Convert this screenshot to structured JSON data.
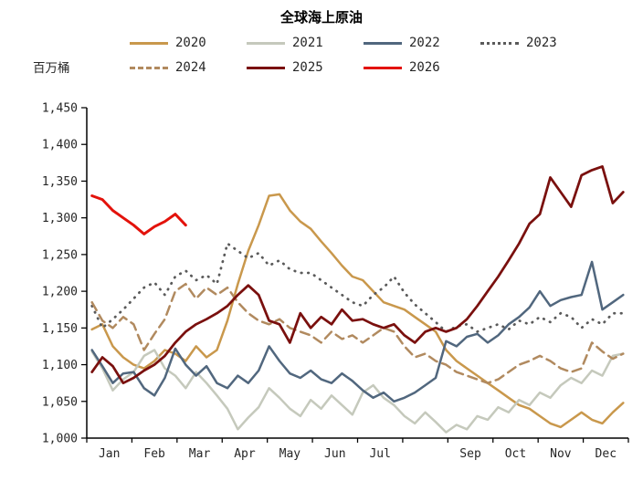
{
  "chart_data": {
    "type": "line",
    "title": "全球海上原油",
    "unit_label": "百万桶",
    "ylim": [
      1000,
      1450
    ],
    "ytick_step": 50,
    "ytick_labels": [
      "1,000",
      "1,050",
      "1,100",
      "1,150",
      "1,200",
      "1,250",
      "1,300",
      "1,350",
      "1,400",
      "1,450"
    ],
    "x_tick_labels": [
      "Jan",
      "Feb",
      "Mar",
      "Apr",
      "May",
      "Jun",
      "Jul",
      "",
      "Sep",
      "Oct",
      "Nov",
      "Dec"
    ],
    "weeks_per_year": 52,
    "grid": false,
    "legend_position": "top",
    "series": [
      {
        "name": "2020",
        "color": "#C9984C",
        "style": "solid",
        "width": 2.5,
        "values": [
          1148,
          1155,
          1125,
          1110,
          1100,
          1095,
          1105,
          1120,
          1115,
          1105,
          1125,
          1110,
          1120,
          1160,
          1210,
          1255,
          1290,
          1330,
          1332,
          1310,
          1295,
          1285,
          1268,
          1252,
          1235,
          1220,
          1215,
          1200,
          1185,
          1180,
          1175,
          1165,
          1155,
          1145,
          1120,
          1105,
          1095,
          1085,
          1075,
          1065,
          1055,
          1045,
          1040,
          1030,
          1020,
          1015,
          1025,
          1035,
          1025,
          1020,
          1035,
          1048
        ]
      },
      {
        "name": "2021",
        "color": "#C5C9BC",
        "style": "solid",
        "width": 2.5,
        "values": [
          1118,
          1095,
          1065,
          1080,
          1090,
          1112,
          1120,
          1095,
          1085,
          1068,
          1090,
          1075,
          1058,
          1040,
          1012,
          1028,
          1042,
          1068,
          1055,
          1040,
          1030,
          1052,
          1040,
          1058,
          1045,
          1032,
          1062,
          1072,
          1055,
          1045,
          1030,
          1020,
          1035,
          1022,
          1008,
          1018,
          1012,
          1030,
          1025,
          1042,
          1035,
          1052,
          1045,
          1062,
          1055,
          1072,
          1082,
          1075,
          1092,
          1085,
          1112,
          1115
        ]
      },
      {
        "name": "2022",
        "color": "#51677E",
        "style": "solid",
        "width": 2.5,
        "values": [
          1120,
          1098,
          1075,
          1088,
          1090,
          1068,
          1058,
          1082,
          1122,
          1100,
          1085,
          1098,
          1075,
          1068,
          1085,
          1075,
          1092,
          1125,
          1105,
          1088,
          1082,
          1092,
          1080,
          1075,
          1088,
          1078,
          1065,
          1055,
          1062,
          1050,
          1055,
          1062,
          1072,
          1082,
          1132,
          1125,
          1138,
          1142,
          1130,
          1140,
          1155,
          1165,
          1178,
          1200,
          1180,
          1188,
          1192,
          1195,
          1240,
          1175,
          1185,
          1195
        ]
      },
      {
        "name": "2023",
        "color": "#5A5A5A",
        "style": "dotted",
        "width": 2.75,
        "values": [
          1180,
          1150,
          1162,
          1175,
          1190,
          1205,
          1212,
          1195,
          1220,
          1228,
          1215,
          1222,
          1210,
          1265,
          1255,
          1245,
          1252,
          1235,
          1242,
          1230,
          1225,
          1225,
          1215,
          1205,
          1195,
          1185,
          1180,
          1195,
          1205,
          1220,
          1198,
          1182,
          1170,
          1158,
          1145,
          1152,
          1155,
          1145,
          1150,
          1155,
          1148,
          1160,
          1155,
          1165,
          1158,
          1170,
          1165,
          1150,
          1162,
          1155,
          1170,
          1170
        ]
      },
      {
        "name": "2024",
        "color": "#B18A5F",
        "style": "dashed",
        "width": 2.5,
        "values": [
          1185,
          1160,
          1150,
          1165,
          1155,
          1120,
          1142,
          1162,
          1200,
          1210,
          1190,
          1205,
          1195,
          1205,
          1185,
          1170,
          1160,
          1155,
          1162,
          1150,
          1145,
          1140,
          1130,
          1145,
          1135,
          1140,
          1130,
          1140,
          1150,
          1145,
          1125,
          1110,
          1115,
          1105,
          1100,
          1090,
          1085,
          1080,
          1075,
          1080,
          1090,
          1100,
          1105,
          1112,
          1105,
          1095,
          1090,
          1095,
          1130,
          1118,
          1108,
          1115
        ]
      },
      {
        "name": "2025",
        "color": "#7A100E",
        "style": "solid",
        "width": 2.75,
        "values": [
          1090,
          1110,
          1098,
          1075,
          1082,
          1092,
          1100,
          1112,
          1130,
          1145,
          1155,
          1162,
          1170,
          1180,
          1195,
          1208,
          1195,
          1160,
          1155,
          1130,
          1170,
          1150,
          1165,
          1155,
          1175,
          1160,
          1162,
          1155,
          1150,
          1155,
          1140,
          1130,
          1145,
          1150,
          1145,
          1150,
          1162,
          1180,
          1200,
          1220,
          1242,
          1265,
          1292,
          1305,
          1355,
          1335,
          1315,
          1358,
          1365,
          1370,
          1320,
          1335
        ]
      },
      {
        "name": "2026",
        "color": "#E3120B",
        "style": "solid",
        "width": 3,
        "values": [
          1330,
          1325,
          1310,
          1300,
          1290,
          1278,
          1288,
          1295,
          1305,
          1290
        ]
      }
    ]
  }
}
